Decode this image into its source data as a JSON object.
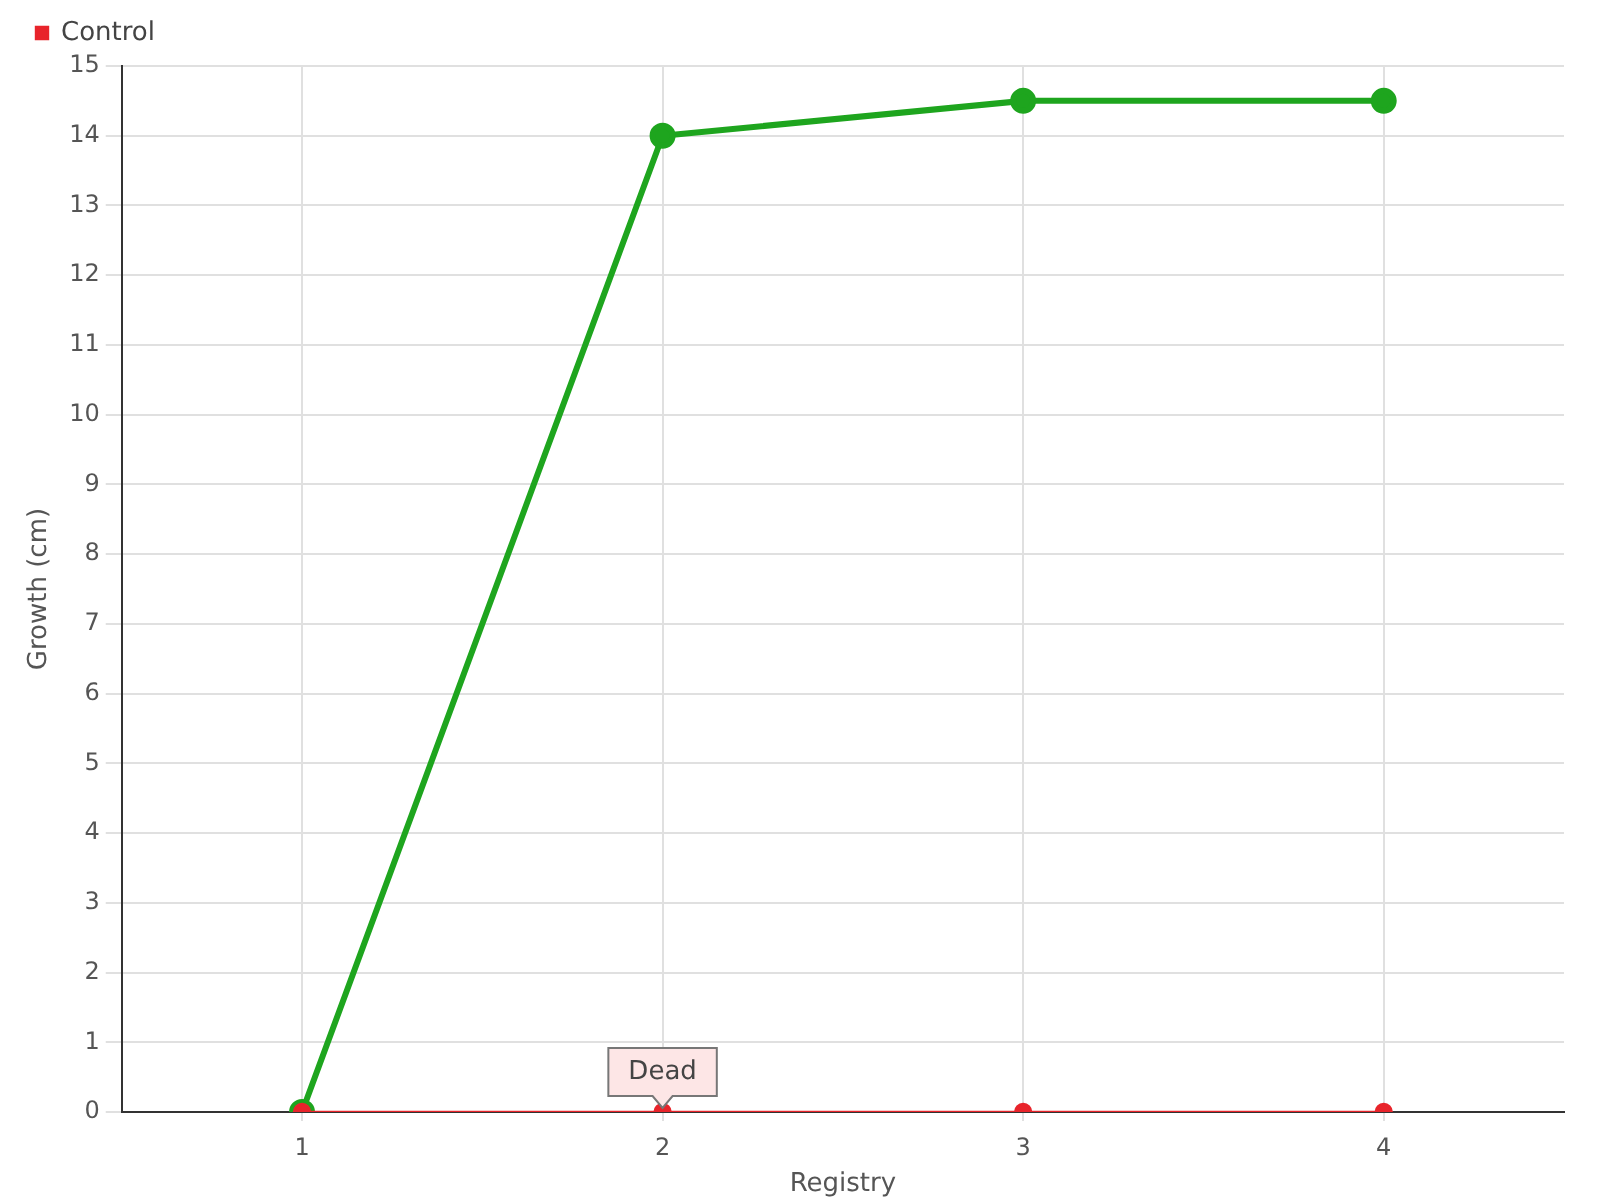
{
  "chart_data": {
    "type": "line",
    "xlabel": "Registry",
    "ylabel": "Growth (cm)",
    "categories": [
      "1",
      "2",
      "3",
      "4"
    ],
    "series": [
      {
        "color": "#1ea51e",
        "values": [
          0,
          14,
          14.5,
          14.5
        ]
      },
      {
        "name": "Control",
        "color": "#e8242b",
        "values": [
          0,
          0,
          0,
          0
        ]
      }
    ],
    "ylim": [
      0,
      15
    ],
    "yticks": [
      0,
      1,
      2,
      3,
      4,
      5,
      6,
      7,
      8,
      9,
      10,
      11,
      12,
      13,
      14,
      15
    ],
    "grid": true,
    "legend": "top left",
    "marker": "circle",
    "annotations": [
      {
        "text": "Dead",
        "x": "2",
        "y": 0
      }
    ]
  }
}
